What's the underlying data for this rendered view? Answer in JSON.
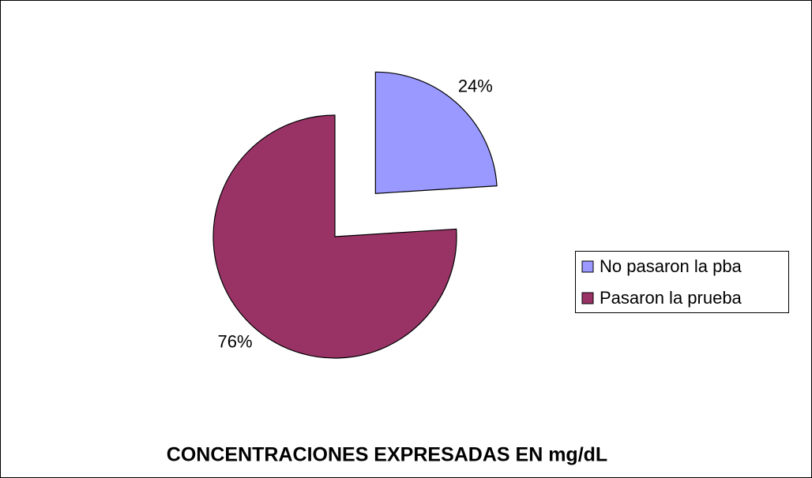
{
  "chart_data": {
    "type": "pie",
    "title": "CONCENTRACIONES EXPRESADAS EN mg/dL",
    "categories": [
      "No pasaron la pba",
      "Pasaron la prueba"
    ],
    "values": [
      24,
      76
    ],
    "value_labels": [
      "24%",
      "76%"
    ],
    "colors": [
      "#9999ff",
      "#993366"
    ],
    "legend": "right"
  }
}
